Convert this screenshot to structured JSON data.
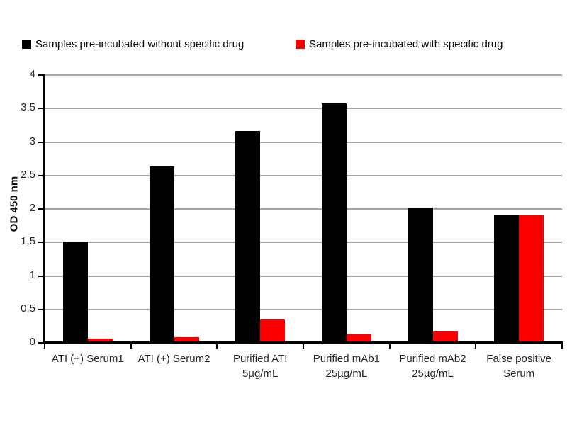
{
  "legend": {
    "items": [
      {
        "label": "Samples pre-incubated without specific drug",
        "color": "#000000"
      },
      {
        "label": "Samples pre-incubated with specific drug",
        "color": "#fb0000"
      }
    ]
  },
  "chart_data": {
    "type": "bar",
    "title": "",
    "xlabel": "",
    "ylabel": "OD 450 nm",
    "ylim": [
      0,
      4
    ],
    "ytick_step": 0.5,
    "ytick_labels": [
      "0",
      "0,5",
      "1",
      "1,5",
      "2",
      "2,5",
      "3",
      "3,5",
      "4"
    ],
    "grid": true,
    "legend_position": "top",
    "categories": [
      "ATI (+) Serum1",
      "ATI (+) Serum2",
      "Purified ATI\n5µg/mL",
      "Purified mAb1\n25µg/mL",
      "Purified mAb2\n25µg/mL",
      "False positive\nSerum"
    ],
    "series": [
      {
        "name": "Samples pre-incubated without specific drug",
        "color": "#000000",
        "values": [
          1.51,
          2.63,
          3.16,
          3.58,
          2.02,
          1.91
        ]
      },
      {
        "name": "Samples pre-incubated with specific drug",
        "color": "#fb0000",
        "values": [
          0.06,
          0.08,
          0.35,
          0.13,
          0.17,
          1.91
        ]
      }
    ],
    "colors": {
      "gridline": "#a6a6a6",
      "axis": "#000000",
      "tick_text": "#262626"
    }
  }
}
